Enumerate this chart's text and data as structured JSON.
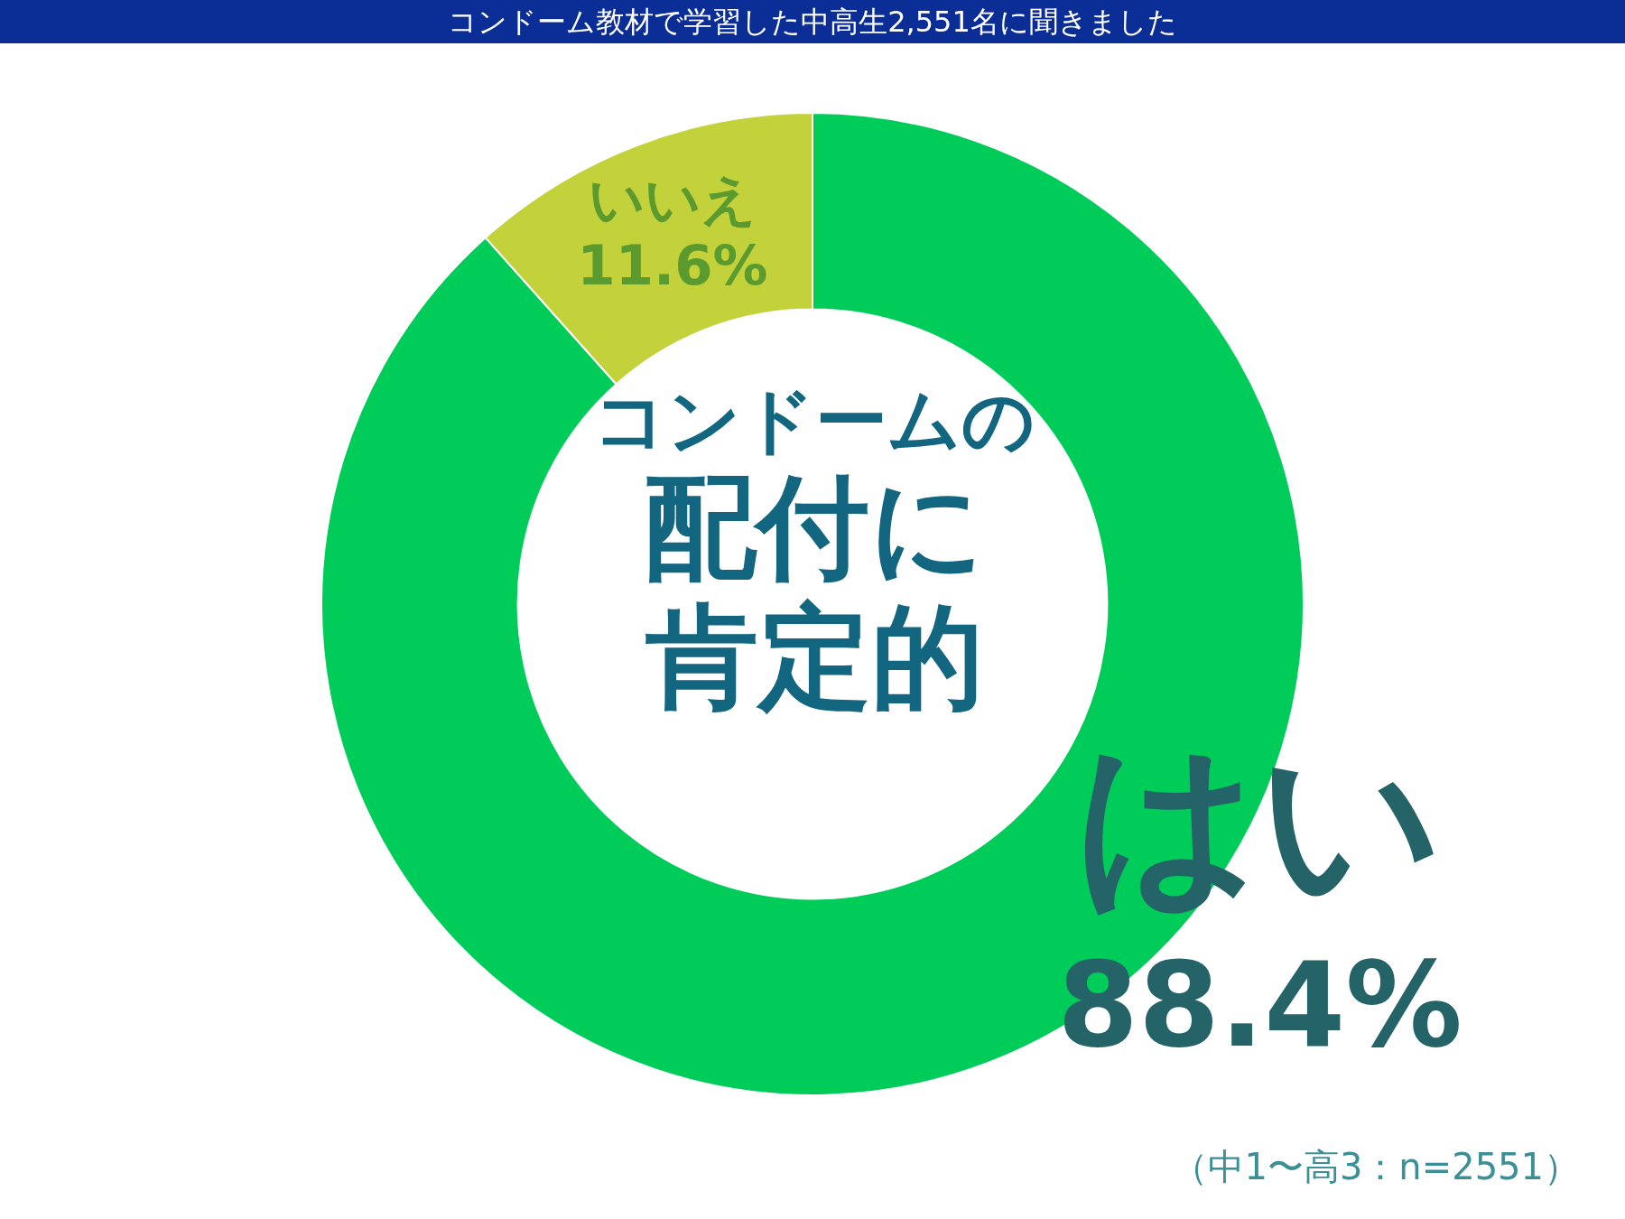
{
  "chart_data": {
    "type": "donut",
    "title": "コンドーム教材で学習した中高生2,551名に聞きました",
    "categories": [
      "はい",
      "いいえ"
    ],
    "values": [
      88.4,
      11.6
    ],
    "colors": [
      "#00cc5a",
      "#c3d13b"
    ],
    "value_labels": [
      "88.4%",
      "11.6%"
    ],
    "annotations": [
      "コンドームの",
      "配付に",
      "肯定的",
      "（中1〜高3：n=2551）"
    ]
  }
}
